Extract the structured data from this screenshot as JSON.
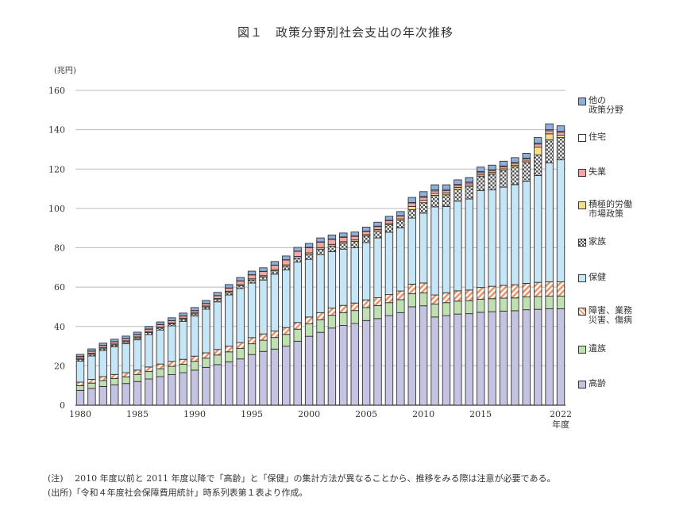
{
  "title": "図１　政策分野別社会支出の年次推移",
  "chart_data": {
    "type": "bar",
    "stacked": true,
    "ylabel": "(兆円)",
    "xlabel": "年度",
    "ylim": [
      0,
      160
    ],
    "yticks": [
      0,
      20,
      40,
      60,
      80,
      100,
      120,
      140,
      160
    ],
    "xtick_labels": [
      "1980",
      "1985",
      "1990",
      "1995",
      "2000",
      "2005",
      "2010",
      "2015",
      "2022"
    ],
    "grid": true,
    "legend_placement": "right",
    "categories": [
      1980,
      1981,
      1982,
      1983,
      1984,
      1985,
      1986,
      1987,
      1988,
      1989,
      1990,
      1991,
      1992,
      1993,
      1994,
      1995,
      1996,
      1997,
      1998,
      1999,
      2000,
      2001,
      2002,
      2003,
      2004,
      2005,
      2006,
      2007,
      2008,
      2009,
      2010,
      2011,
      2012,
      2013,
      2014,
      2015,
      2016,
      2017,
      2018,
      2019,
      2020,
      2021,
      2022
    ],
    "series": [
      {
        "name": "高齢",
        "color": "#c4c3e2",
        "pattern": "solid",
        "values": [
          7.5,
          8.5,
          9.5,
          10.3,
          11,
          12,
          13.3,
          14.5,
          15.5,
          16.5,
          17.8,
          19.2,
          20.6,
          22,
          23.5,
          25.7,
          27.3,
          28.5,
          30,
          32.5,
          35,
          37,
          39.2,
          40.5,
          41.5,
          43,
          44,
          45.5,
          47,
          50,
          50.5,
          44.8,
          45.5,
          46.3,
          46.5,
          47.2,
          47.5,
          47.8,
          48,
          48.5,
          48.7,
          49,
          49
        ]
      },
      {
        "name": "遺族",
        "color": "#bfe0b0",
        "pattern": "solid",
        "values": [
          2.4,
          2.7,
          3.0,
          3.2,
          3.4,
          3.6,
          3.8,
          4.0,
          4.2,
          4.3,
          4.5,
          4.7,
          4.9,
          5.1,
          5.3,
          5.5,
          5.7,
          5.9,
          6.0,
          6.1,
          6.3,
          6.4,
          6.5,
          6.5,
          6.6,
          6.6,
          6.6,
          6.6,
          6.6,
          6.6,
          6.6,
          6.6,
          6.6,
          6.6,
          6.6,
          6.6,
          6.6,
          6.6,
          6.5,
          6.5,
          6.5,
          6.4,
          6.4
        ]
      },
      {
        "name": "障害、業務\n災害、傷病",
        "color": "#e8956a",
        "pattern": "stripes",
        "values": [
          1.8,
          1.9,
          2.0,
          2.1,
          2.1,
          2.2,
          2.3,
          2.4,
          2.5,
          2.5,
          2.6,
          2.7,
          2.8,
          2.9,
          3.0,
          3.1,
          3.2,
          3.3,
          3.4,
          3.4,
          3.5,
          3.6,
          3.6,
          3.7,
          3.8,
          3.9,
          4.0,
          4.1,
          4.4,
          4.9,
          5.0,
          4.6,
          5.0,
          5.2,
          5.4,
          6.0,
          6.3,
          6.5,
          6.7,
          6.9,
          7.2,
          7.3,
          7.3
        ]
      },
      {
        "name": "保健",
        "color": "#c5e6f6",
        "pattern": "solid",
        "values": [
          10.7,
          11.9,
          13.3,
          14.1,
          14.7,
          15.4,
          16.5,
          17.3,
          18.1,
          19.3,
          20.4,
          22.2,
          24.2,
          26.0,
          27.5,
          27.8,
          27.4,
          28.9,
          29.4,
          30.8,
          29.3,
          29.6,
          28.7,
          28.6,
          28.1,
          29.1,
          30.4,
          31.7,
          32.1,
          33.6,
          35.5,
          44.8,
          43.9,
          45.6,
          46.3,
          49.2,
          49.0,
          49.9,
          50.9,
          51.9,
          54.3,
          60.4,
          62.0
        ]
      },
      {
        "name": "家族",
        "color": "#555555",
        "pattern": "checker",
        "values": [
          0.9,
          0.9,
          0.9,
          0.9,
          1.0,
          1.0,
          1.0,
          1.0,
          1.0,
          1.1,
          1.1,
          1.1,
          1.2,
          1.3,
          1.4,
          1.5,
          1.6,
          1.7,
          1.8,
          2.0,
          2.5,
          2.7,
          2.9,
          3.1,
          3.3,
          3.4,
          3.6,
          3.8,
          3.9,
          4.3,
          5.3,
          5.8,
          5.9,
          6.0,
          6.2,
          7.4,
          8.0,
          8.5,
          9.0,
          9.5,
          10.5,
          11.8,
          11.3
        ]
      },
      {
        "name": "積極的労働\n市場政策",
        "color": "#f7de8a",
        "pattern": "solid",
        "values": [
          0.5,
          0.5,
          0.5,
          0.5,
          0.5,
          0.5,
          0.5,
          0.5,
          0.5,
          0.5,
          0.5,
          0.5,
          0.5,
          0.6,
          0.6,
          0.6,
          0.6,
          0.6,
          0.7,
          0.8,
          0.8,
          0.8,
          0.8,
          0.7,
          0.7,
          0.7,
          0.7,
          0.7,
          0.7,
          1.6,
          1.2,
          1.0,
          1.0,
          0.9,
          0.9,
          0.8,
          0.8,
          0.8,
          0.8,
          0.8,
          4.0,
          3.0,
          1.2
        ]
      },
      {
        "name": "失業",
        "color": "#f4a6a6",
        "pattern": "solid",
        "values": [
          0.9,
          1.0,
          1.1,
          1.1,
          1.1,
          1.1,
          1.2,
          1.2,
          1.1,
          1.1,
          1.1,
          1.2,
          1.4,
          1.6,
          1.8,
          2.0,
          2.1,
          2.2,
          2.5,
          2.6,
          2.6,
          2.7,
          2.6,
          2.2,
          1.8,
          1.6,
          1.5,
          1.4,
          1.4,
          1.8,
          1.5,
          1.3,
          1.2,
          1.1,
          1.0,
          1.0,
          1.0,
          1.0,
          1.0,
          1.0,
          1.5,
          1.6,
          1.5
        ]
      },
      {
        "name": "住宅",
        "color": "#ffffff",
        "pattern": "solid",
        "values": [
          0.1,
          0.1,
          0.1,
          0.1,
          0.1,
          0.1,
          0.1,
          0.1,
          0.1,
          0.1,
          0.1,
          0.1,
          0.1,
          0.1,
          0.1,
          0.1,
          0.1,
          0.1,
          0.1,
          0.1,
          0.2,
          0.2,
          0.2,
          0.2,
          0.2,
          0.2,
          0.2,
          0.2,
          0.2,
          0.2,
          0.5,
          0.5,
          0.5,
          0.5,
          0.5,
          0.5,
          0.5,
          0.5,
          0.5,
          0.5,
          0.5,
          0.5,
          0.5
        ]
      },
      {
        "name": "他の\n政策分野",
        "color": "#8fb0dc",
        "pattern": "solid",
        "values": [
          1.0,
          1.1,
          1.1,
          1.2,
          1.2,
          1.2,
          1.3,
          1.3,
          1.4,
          1.4,
          1.5,
          1.5,
          1.6,
          1.7,
          1.7,
          1.8,
          1.8,
          1.8,
          1.9,
          1.9,
          2.0,
          2.0,
          2.0,
          2.0,
          2.0,
          2.0,
          2.0,
          2.0,
          2.1,
          2.6,
          2.4,
          2.6,
          2.4,
          2.3,
          2.3,
          2.3,
          2.3,
          2.4,
          2.4,
          2.4,
          2.8,
          3.0,
          2.8
        ]
      }
    ]
  },
  "legend": [
    "他の\n政策分野",
    "住宅",
    "失業",
    "積極的労働\n市場政策",
    "家族",
    "保健",
    "障害、業務\n災害、傷病",
    "遺族",
    "高齢"
  ],
  "notes": {
    "note": "(注)　 2010 年度以前と 2011 年度以降で「高齢」と「保健」の集計方法が異なることから、推移をみる際は注意が必要である。",
    "source": "(出所)「令和４年度社会保障費用統計」時系列表第１表より作成。"
  }
}
